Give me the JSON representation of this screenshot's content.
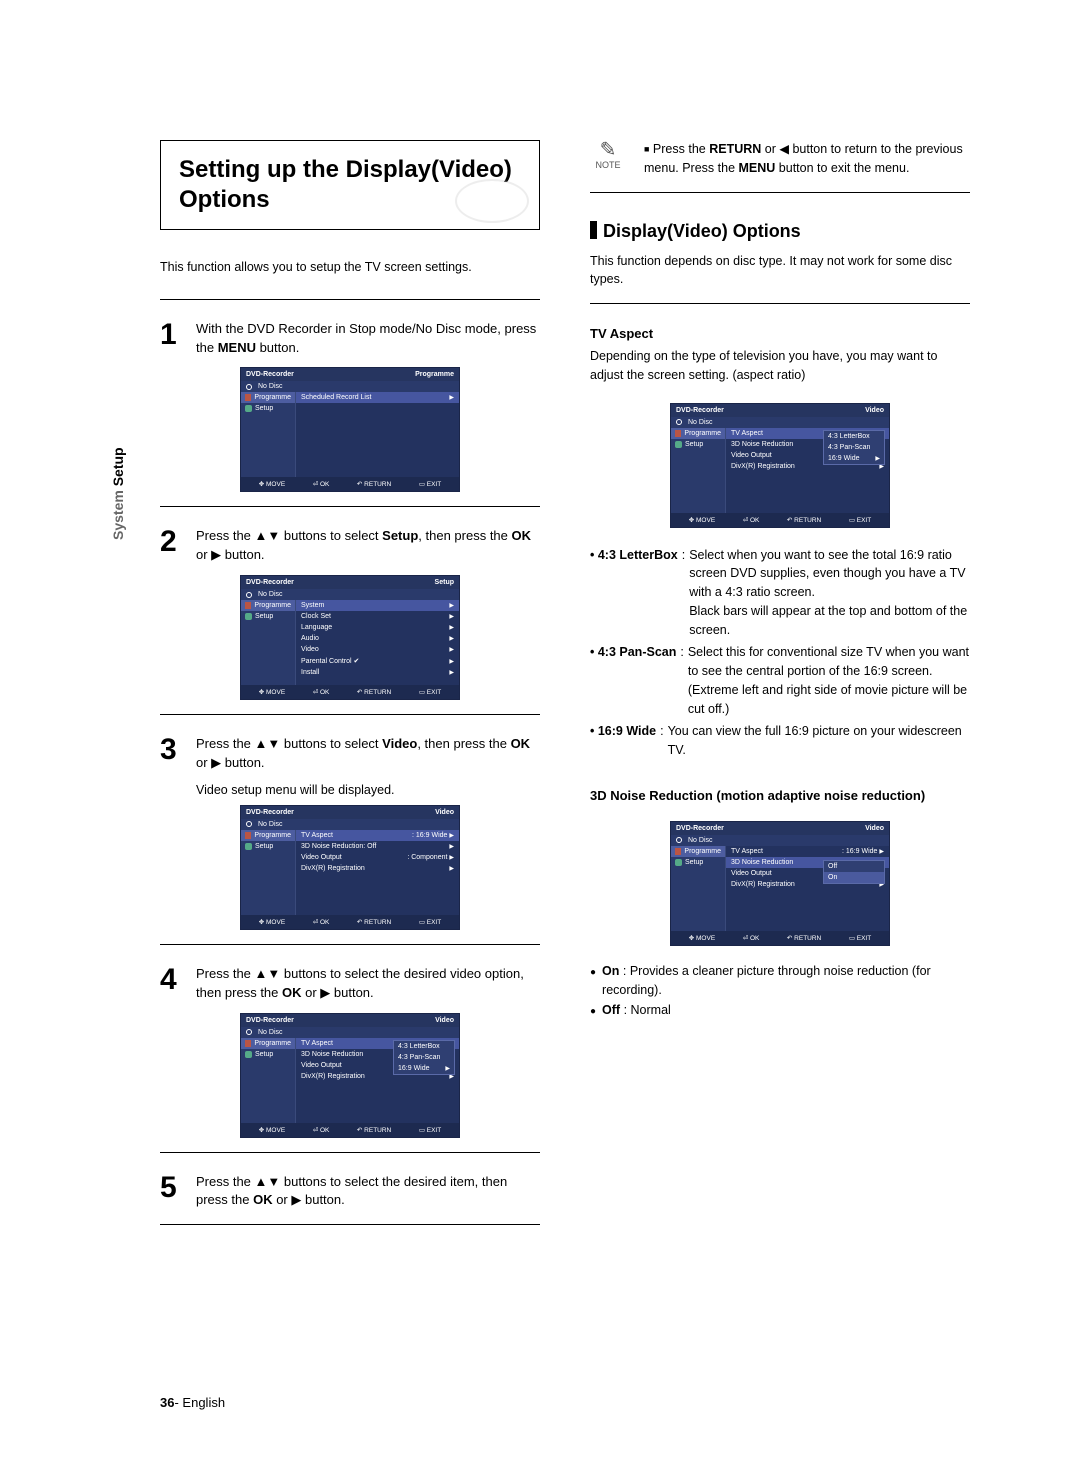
{
  "sideLabel": {
    "part1": "System",
    "part2": "Setup"
  },
  "title": "Setting up the Display(Video) Options",
  "introLeft": "This function allows you to setup the TV screen settings.",
  "steps": {
    "s1": {
      "num": "1",
      "text_a": "With the DVD Recorder in Stop mode/No Disc mode, press the ",
      "b1": "MENU",
      "text_b": " button."
    },
    "s2": {
      "num": "2",
      "text_a": "Press the ▲▼ buttons to select ",
      "b1": "Setup",
      "text_b": ", then press the ",
      "b2": "OK",
      "text_c": " or ▶ button."
    },
    "s3": {
      "num": "3",
      "text_a": "Press the ▲▼ buttons to select ",
      "b1": "Video",
      "text_b": ", then press the ",
      "b2": "OK",
      "text_c": " or ▶ button.",
      "sub": "Video setup menu will be displayed."
    },
    "s4": {
      "num": "4",
      "text_a": "Press the ▲▼ buttons to select the desired video option, then press the ",
      "b1": "OK",
      "text_b": " or ▶ button."
    },
    "s5": {
      "num": "5",
      "text_a": "Press the ▲▼ buttons to select the desired item, then press the ",
      "b1": "OK",
      "text_b": " or ▶ button."
    }
  },
  "osd": {
    "brand": "DVD-Recorder",
    "noDisc": "No Disc",
    "footer": {
      "move": "MOVE",
      "ok": "OK",
      "return": "RETURN",
      "exit": "EXIT"
    },
    "screen1": {
      "corner": "Programme",
      "left": [
        "Programme",
        "Setup"
      ],
      "right": [
        "Scheduled Record List"
      ]
    },
    "screen2": {
      "corner": "Setup",
      "left": [
        "Programme",
        "Setup"
      ],
      "right": [
        "System",
        "Clock Set",
        "Language",
        "Audio",
        "Video",
        "Parental Control ✔",
        "Install"
      ]
    },
    "screen3": {
      "corner": "Video",
      "left": [
        "Programme",
        "Setup"
      ],
      "right": [
        {
          "l": "TV Aspect",
          "v": ": 16:9 Wide",
          "sel": true
        },
        {
          "l": "3D Noise Reduction: Off",
          "v": ""
        },
        {
          "l": "Video Output",
          "v": ": Component"
        },
        {
          "l": "DivX(R) Registration",
          "v": ""
        }
      ]
    },
    "screen4": {
      "corner": "Video",
      "left": [
        "Programme",
        "Setup"
      ],
      "right": [
        {
          "l": "TV Aspect",
          "sel": true
        },
        {
          "l": "3D Noise Reduction"
        },
        {
          "l": "Video Output"
        },
        {
          "l": "DivX(R) Registration"
        }
      ],
      "popup": [
        "4:3 LetterBox",
        "4:3 Pan-Scan",
        "16:9 Wide"
      ],
      "popupArrowIdx": 2
    },
    "screenR1": {
      "corner": "Video",
      "left": [
        "Programme",
        "Setup"
      ],
      "right": [
        {
          "l": "TV Aspect",
          "sel": true
        },
        {
          "l": "3D Noise Reduction"
        },
        {
          "l": "Video Output"
        },
        {
          "l": "DivX(R) Registration"
        }
      ],
      "popup": [
        "4:3 LetterBox",
        "4:3 Pan-Scan",
        "16:9 Wide"
      ],
      "popupArrowIdx": 2
    },
    "screenR2": {
      "corner": "Video",
      "left": [
        "Programme",
        "Setup"
      ],
      "right": [
        {
          "l": "TV Aspect",
          "v": ": 16:9 Wide"
        },
        {
          "l": "3D Noise Reduction",
          "sel": true
        },
        {
          "l": "Video Output"
        },
        {
          "l": "DivX(R) Registration"
        }
      ],
      "popup": [
        "Off",
        "On"
      ],
      "popupSel": 1,
      "popupTop": 14
    }
  },
  "note": {
    "label": "NOTE",
    "t1": "Press the ",
    "b1": "RETURN",
    "t2": " or ◀ button to return to the previous menu. Press the ",
    "b2": "MENU",
    "t3": " button to exit the menu."
  },
  "h2": "Display(Video) Options",
  "rightIntro": "This function depends on disc type. It may not work for some disc types.",
  "tvAspect": {
    "heading": "TV Aspect",
    "intro": "Depending on the type of television you have, you may want to adjust the screen setting. (aspect ratio)",
    "items": [
      {
        "lbl": "• 4:3 LetterBox",
        "desc": "Select when you want to see the total 16:9 ratio screen DVD supplies, even though you have a TV with a 4:3 ratio screen.",
        "cont": "Black bars will appear at the top and bottom of the screen."
      },
      {
        "lbl": "• 4:3 Pan-Scan",
        "desc": "Select this for conventional size TV when you want to see the central portion of the 16:9 screen. (Extreme left and right side of movie picture will be cut off.)"
      },
      {
        "lbl": "• 16:9 Wide",
        "desc": "You can view the full 16:9 picture on your widescreen TV."
      }
    ]
  },
  "noise": {
    "heading": "3D Noise Reduction (motion adaptive noise reduction)",
    "items": [
      {
        "lbl": "On",
        "desc": "Provides a cleaner picture through noise reduction (for recording)."
      },
      {
        "lbl": "Off",
        "desc": "Normal"
      }
    ]
  },
  "footer": {
    "page": "36",
    "sep": "- ",
    "lang": "English"
  }
}
